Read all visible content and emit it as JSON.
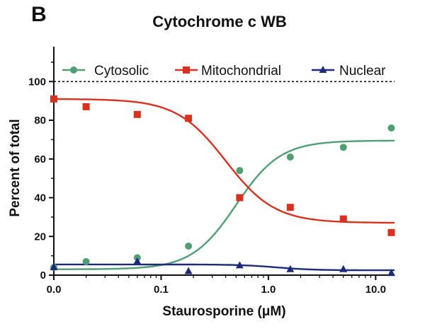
{
  "panel_label": "B",
  "chart_data": {
    "type": "scatter",
    "title": "Cytochrome c WB",
    "xlabel": "Staurosporine (μM)",
    "ylabel": "Percent of total",
    "x_scale": "log",
    "x_ticks": [
      {
        "value": 0.01,
        "label": "0.0"
      },
      {
        "value": 0.1,
        "label": "0.1"
      },
      {
        "value": 1.0,
        "label": "1.0"
      },
      {
        "value": 10.0,
        "label": "10.0"
      }
    ],
    "y_ticks": [
      0,
      20,
      40,
      60,
      80,
      100
    ],
    "xlim": [
      0.01,
      15
    ],
    "ylim": [
      0,
      118
    ],
    "reference_line": {
      "y": 100,
      "style": "dotted"
    },
    "legend_position": "top",
    "series": [
      {
        "name": "Cytosolic",
        "marker": "circle",
        "color": "#4f9f73",
        "x": [
          0.01,
          0.02,
          0.06,
          0.18,
          0.54,
          1.6,
          5.0,
          14.0
        ],
        "y": [
          4,
          7,
          9,
          15,
          54,
          61,
          66,
          76
        ],
        "fit": {
          "bottom": 3,
          "top": 69.5,
          "ec50": 0.5,
          "hill": 2.1
        }
      },
      {
        "name": "Mitochondrial",
        "marker": "square",
        "color": "#d9301f",
        "x": [
          0.01,
          0.02,
          0.06,
          0.18,
          0.54,
          1.6,
          5.0,
          14.0
        ],
        "y": [
          91,
          87,
          83,
          81,
          40,
          35,
          29,
          22
        ],
        "fit": {
          "bottom": 27,
          "top": 91,
          "ec50": 0.4,
          "hill": 1.9
        }
      },
      {
        "name": "Nuclear",
        "marker": "triangle",
        "color": "#1c2a7a",
        "x": [
          0.01,
          0.06,
          0.18,
          0.54,
          1.6,
          5.0,
          14.0
        ],
        "y": [
          4,
          7,
          2,
          5,
          3,
          3,
          1
        ],
        "fit": {
          "bottom": 2.5,
          "top": 5.5,
          "ec50": 1.2,
          "hill": 2.5
        }
      }
    ]
  }
}
